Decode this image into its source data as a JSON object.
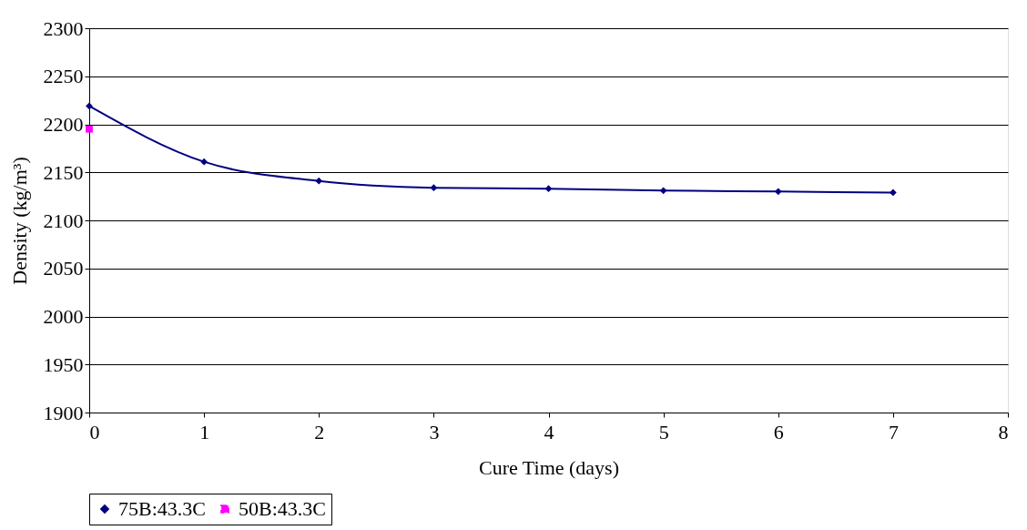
{
  "chart_data": {
    "type": "line",
    "xlabel": "Cure Time (days)",
    "ylabel": "Density (kg/m³)",
    "xlim": [
      0,
      8
    ],
    "xticks": [
      0,
      1,
      2,
      3,
      4,
      5,
      6,
      7,
      8
    ],
    "ylim": [
      1900,
      2300
    ],
    "yticks": [
      1900,
      1950,
      2000,
      2050,
      2100,
      2150,
      2200,
      2250,
      2300
    ],
    "grid": "y",
    "legend": "bottom",
    "series": [
      {
        "name": "75B:43.3C",
        "color": "#000080",
        "marker": "diamond",
        "line_style": "solid",
        "x": [
          0,
          1,
          2,
          3,
          4,
          5,
          6,
          7
        ],
        "values": [
          2219,
          2161,
          2141,
          2134,
          2133,
          2131,
          2130,
          2129
        ]
      },
      {
        "name": "50B:43.3C",
        "color": "#ff00ff",
        "marker": "square",
        "line_style": "dashed",
        "x": [
          0
        ],
        "values": [
          2195
        ]
      }
    ]
  }
}
